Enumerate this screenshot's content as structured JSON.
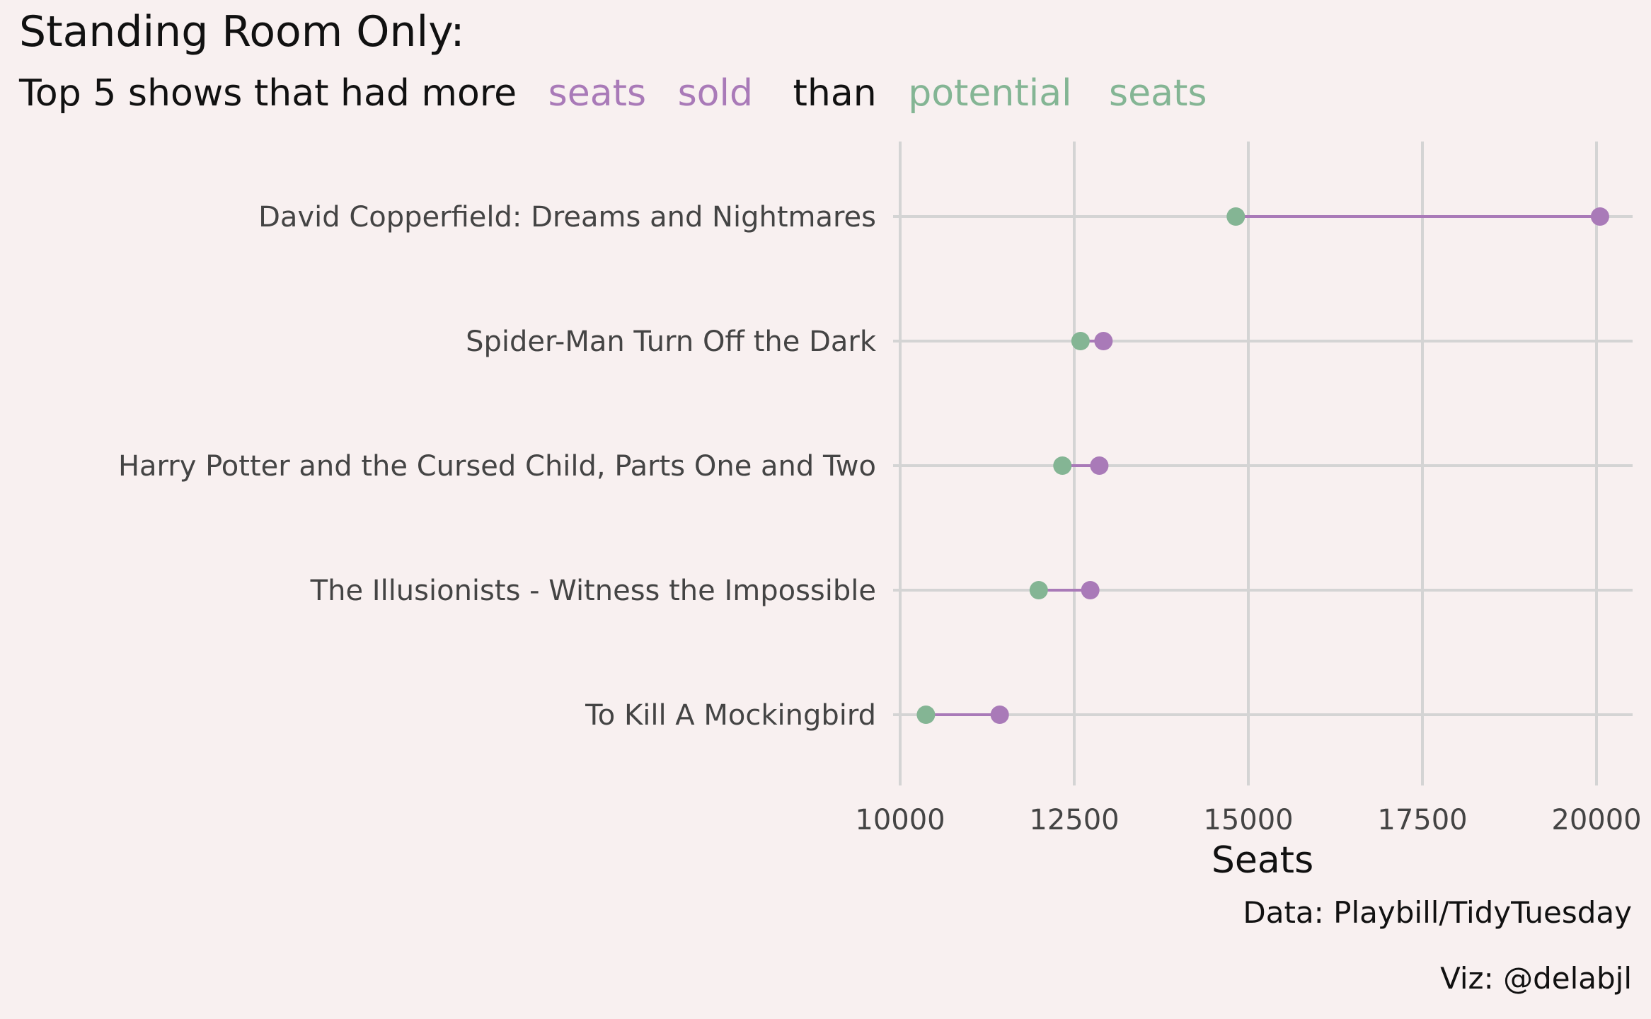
{
  "chart_data": {
    "type": "dumbbell",
    "title": "Standing Room Only:",
    "subtitle_words": [
      "Top 5 shows that had more",
      "seats",
      "sold",
      "than",
      "potential",
      "seats"
    ],
    "xlabel": "Seats",
    "ylabel": "",
    "xlim": [
      10000,
      20500
    ],
    "x_ticks": [
      10000,
      12500,
      15000,
      17500,
      20000
    ],
    "grid": true,
    "categories": [
      "David Copperfield: Dreams and Nightmares",
      "Spider-Man Turn Off the Dark",
      "Harry Potter and the Cursed Child, Parts One and Two",
      "The Illusionists - Witness the Impossible",
      "To Kill A Mockingbird"
    ],
    "series": [
      {
        "name": "seats sold",
        "color": "#a97ab8",
        "values": [
          20050,
          12920,
          12860,
          12730,
          11430
        ]
      },
      {
        "name": "potential seats",
        "color": "#84b594",
        "values": [
          14820,
          12590,
          12330,
          11990,
          10370
        ]
      }
    ],
    "caption_data": "Data: Playbill/TidyTuesday",
    "caption_viz": "Viz: @delabjl"
  }
}
